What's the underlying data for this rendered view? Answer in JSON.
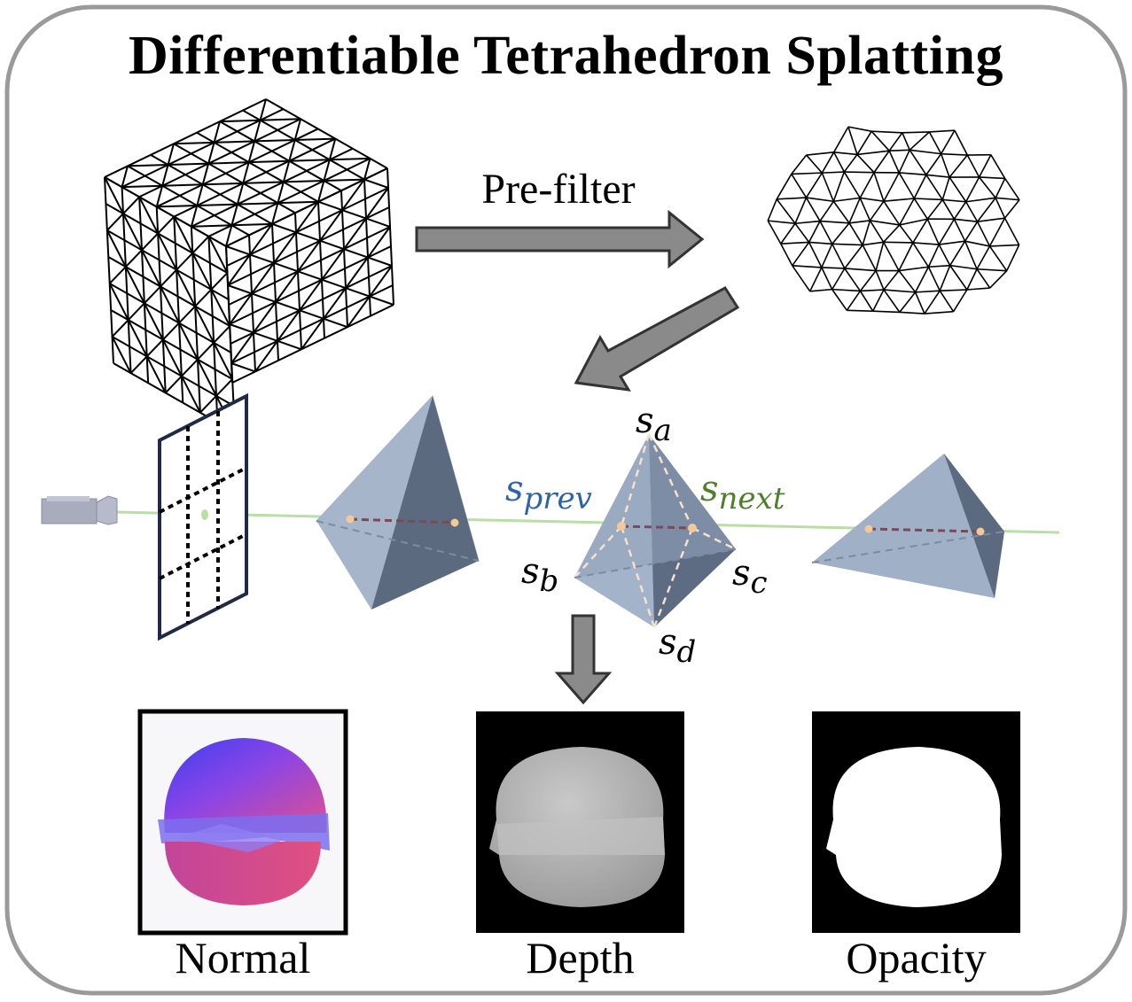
{
  "title": "Differentiable Tetrahedron Splatting",
  "step_label": "Pre-filter",
  "labels": {
    "s_prev_base": "s",
    "s_prev_sub": "prev",
    "s_next_base": "s",
    "s_next_sub": "next",
    "s_a_base": "s",
    "s_a_sub": "a",
    "s_b_base": "s",
    "s_b_sub": "b",
    "s_c_base": "s",
    "s_c_sub": "c",
    "s_d_base": "s",
    "s_d_sub": "d"
  },
  "outputs": [
    {
      "label": "Normal"
    },
    {
      "label": "Depth"
    },
    {
      "label": "Opacity"
    }
  ],
  "colors": {
    "prev_label": "#2f63a8",
    "next_label": "#4e7f2e",
    "ray": "#b9dfa7",
    "tetra_light": "#9fb0c7",
    "tetra_dark": "#5c6a80",
    "arrow_fill": "#8a8a8a"
  }
}
